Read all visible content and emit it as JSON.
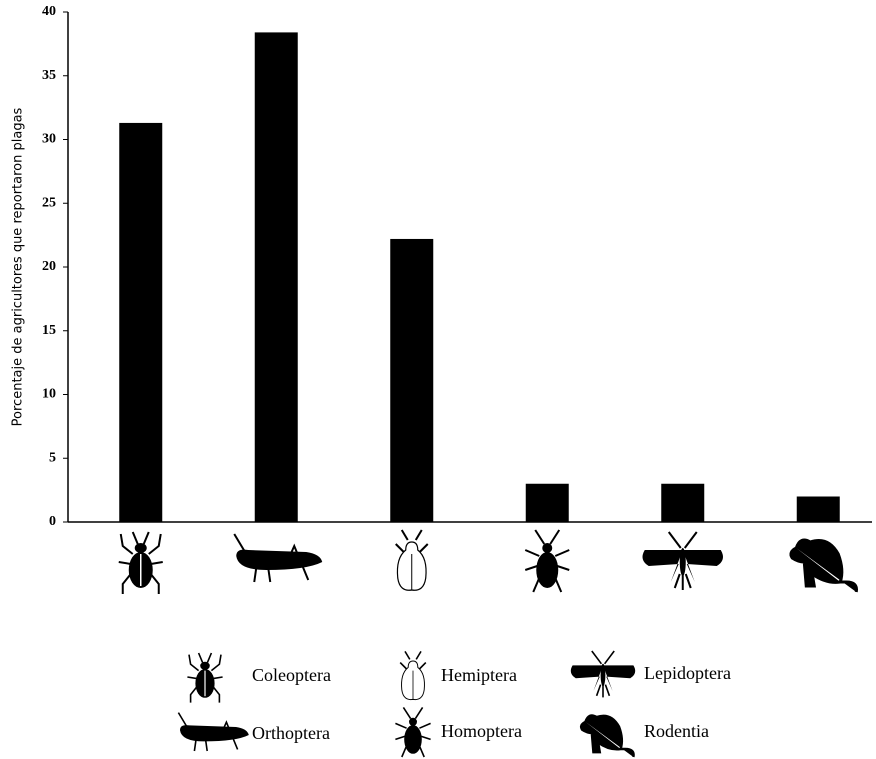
{
  "chart_data": {
    "type": "bar",
    "ylabel": "Porcentaje de agricultores que reportaron plagas",
    "categories": [
      "Coleoptera",
      "Orthoptera",
      "Hemiptera",
      "Homoptera",
      "Lepidoptera",
      "Rodentia"
    ],
    "values": [
      31.3,
      38.4,
      22.2,
      3.0,
      3.0,
      2.0
    ],
    "color": "#000000",
    "ylim": [
      0,
      40
    ],
    "yticks": [
      0,
      5,
      10,
      15,
      20,
      25,
      30,
      35,
      40
    ]
  }
}
